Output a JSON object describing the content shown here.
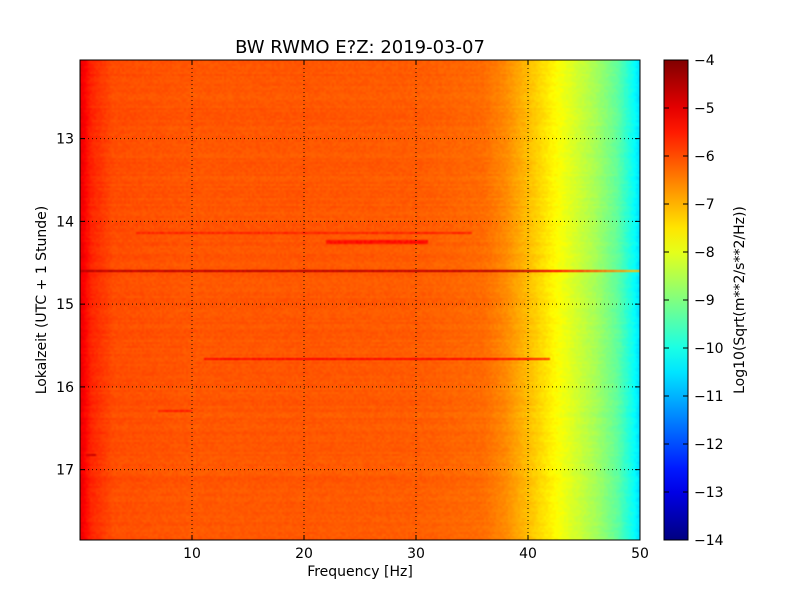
{
  "chart_data": {
    "type": "heatmap",
    "title": "BW RWMO E?Z: 2019-03-07",
    "xlabel": "Frequency [Hz]",
    "ylabel": "Lokalzeit (UTC + 1 Stunde)",
    "xlim": [
      0,
      50
    ],
    "ylim_hours": [
      17.85,
      12.05
    ],
    "x_ticks": [
      10,
      20,
      30,
      40,
      50
    ],
    "x_tick_labels": [
      "10",
      "20",
      "30",
      "40",
      "50"
    ],
    "y_ticks": [
      13,
      14,
      15,
      16,
      17
    ],
    "y_tick_labels": [
      "13",
      "14",
      "15",
      "16",
      "17"
    ],
    "grid": true,
    "colorbar": {
      "label": "Log10(Sqrt(m**2/s**2/Hz))",
      "range": [
        -14,
        -4
      ],
      "ticks": [
        -4,
        -5,
        -6,
        -7,
        -8,
        -9,
        -10,
        -11,
        -12,
        -13,
        -14
      ],
      "tick_labels": [
        "−4",
        "−5",
        "−6",
        "−7",
        "−8",
        "−9",
        "−10",
        "−11",
        "−12",
        "−13",
        "−14"
      ],
      "colormap": "jet"
    },
    "spectrum_profile": {
      "frequency_hz": [
        0,
        1,
        3,
        10,
        20,
        30,
        36,
        38,
        40,
        42,
        44,
        46,
        48,
        49.5,
        50
      ],
      "value": [
        -5.0,
        -5.6,
        -6.0,
        -6.1,
        -6.1,
        -6.15,
        -6.3,
        -6.6,
        -7.1,
        -7.6,
        -8.1,
        -8.6,
        -9.3,
        -10.2,
        -10.6
      ]
    },
    "features": [
      {
        "kind": "band",
        "time_hours": 14.6,
        "freq_range_hz": [
          0,
          50
        ],
        "value": -4.6
      },
      {
        "kind": "band",
        "time_hours": 15.67,
        "freq_range_hz": [
          11,
          42
        ],
        "value": -5.3
      },
      {
        "kind": "band",
        "time_hours": 14.15,
        "freq_range_hz": [
          5,
          35
        ],
        "value": -5.6
      },
      {
        "kind": "band",
        "time_hours": 14.25,
        "freq_range_hz": [
          22,
          31
        ],
        "value": -5.4
      },
      {
        "kind": "band",
        "time_hours": 16.3,
        "freq_range_hz": [
          7,
          10
        ],
        "value": -5.5
      },
      {
        "kind": "band",
        "time_hours": 16.82,
        "freq_range_hz": [
          0.5,
          1.5
        ],
        "value": -4.8
      }
    ]
  }
}
